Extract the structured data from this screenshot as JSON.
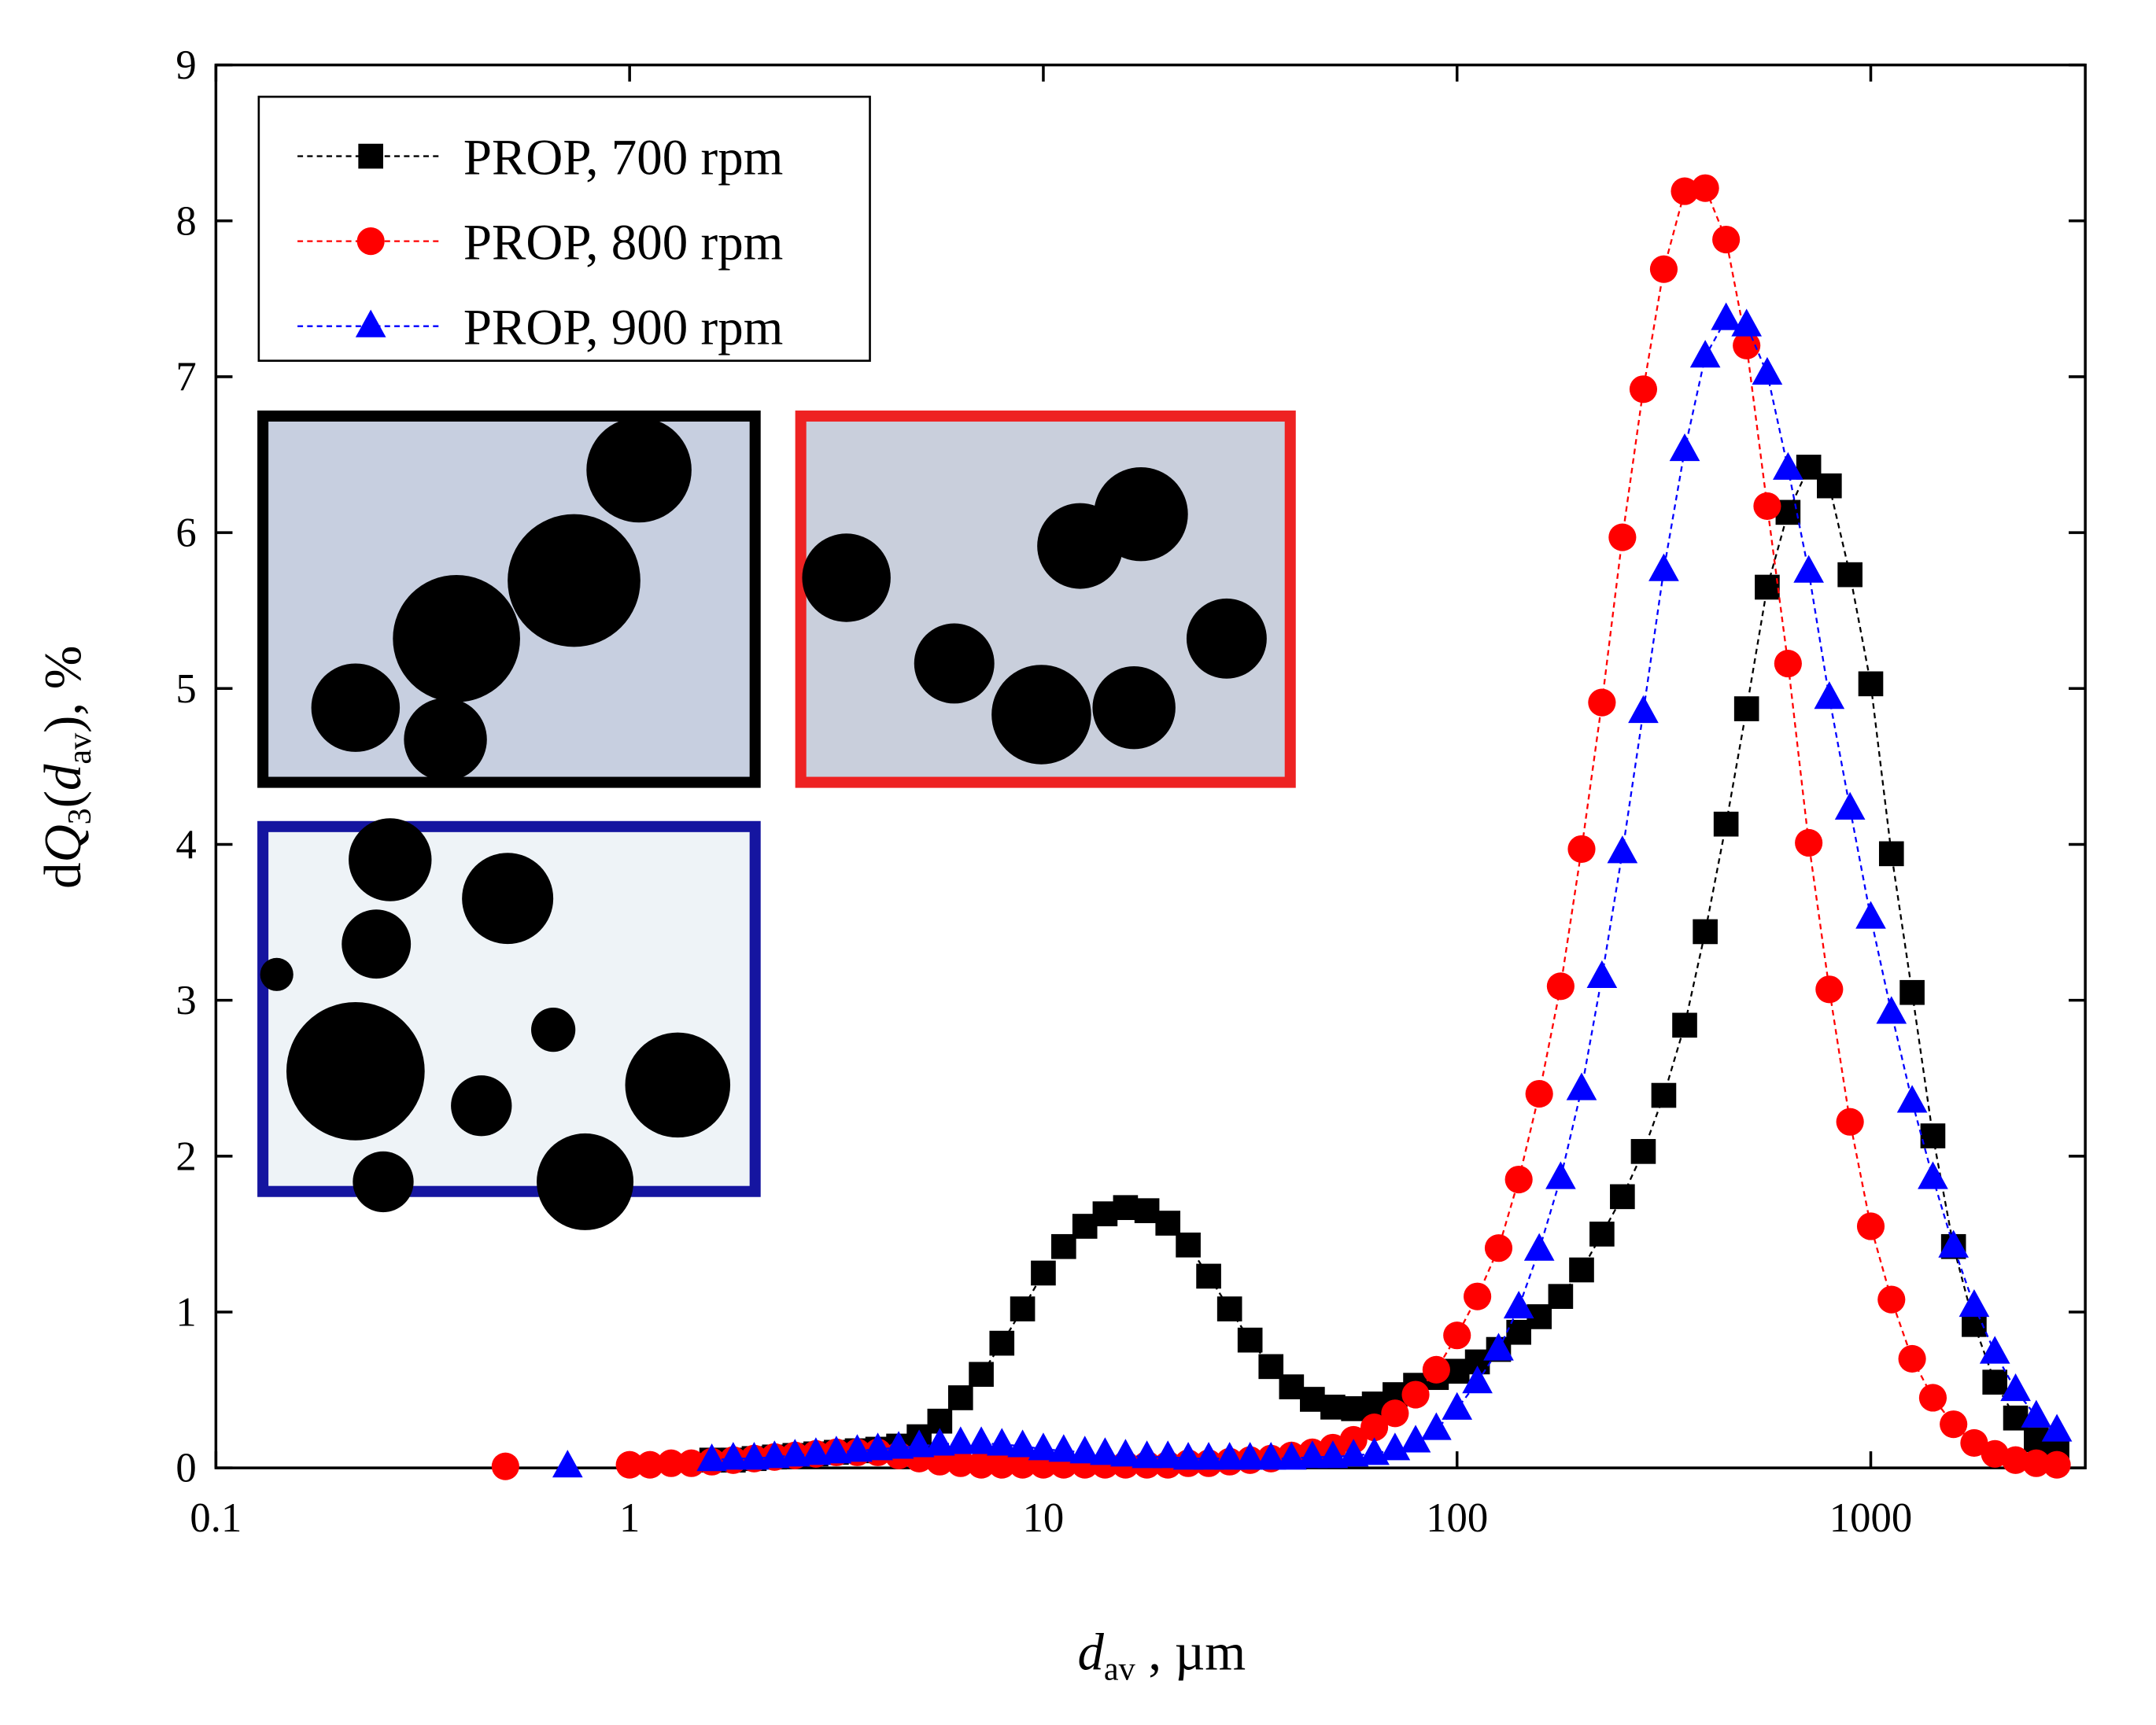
{
  "chart_data": {
    "type": "scatter",
    "x_label": [
      "d",
      "av",
      " , µm"
    ],
    "y_label": [
      "d",
      "Q",
      "3",
      "(",
      "d",
      "av",
      "), %"
    ],
    "x": [
      0.501,
      0.562,
      0.631,
      0.708,
      0.794,
      0.891,
      1,
      1.12,
      1.26,
      1.41,
      1.58,
      1.78,
      2.0,
      2.24,
      2.51,
      2.82,
      3.16,
      3.55,
      3.98,
      4.47,
      5.01,
      5.62,
      6.31,
      7.08,
      7.94,
      8.91,
      10,
      11.2,
      12.6,
      14.1,
      15.8,
      17.8,
      20,
      22.4,
      25.1,
      28.2,
      31.6,
      35.5,
      39.8,
      44.7,
      50.1,
      56.2,
      63.1,
      70.8,
      79.4,
      89.1,
      100,
      112,
      126,
      141,
      158,
      178,
      200,
      224,
      251,
      282,
      316,
      355,
      398,
      447,
      501,
      562,
      631,
      708,
      794,
      891,
      1000,
      1122,
      1259,
      1413,
      1585,
      1778,
      1995,
      2239,
      2512,
      2818
    ],
    "series": [
      {
        "name": "PROP, 700 rpm",
        "color": "#000000",
        "marker": "square",
        "values": [
          null,
          null,
          null,
          null,
          null,
          null,
          null,
          null,
          null,
          null,
          0.05,
          0.05,
          0.06,
          0.07,
          0.08,
          0.09,
          0.1,
          0.11,
          0.12,
          0.14,
          0.2,
          0.3,
          0.45,
          0.6,
          0.8,
          1.02,
          1.25,
          1.42,
          1.55,
          1.63,
          1.67,
          1.65,
          1.57,
          1.43,
          1.23,
          1.02,
          0.82,
          0.65,
          0.52,
          0.44,
          0.39,
          0.38,
          0.41,
          0.47,
          0.53,
          0.58,
          0.62,
          0.68,
          0.76,
          0.87,
          0.97,
          1.1,
          1.27,
          1.5,
          1.74,
          2.03,
          2.39,
          2.84,
          3.44,
          4.13,
          4.87,
          5.65,
          6.13,
          6.42,
          6.3,
          5.73,
          5.03,
          3.94,
          3.05,
          2.13,
          1.42,
          0.92,
          0.55,
          0.32,
          0.18,
          0.1
        ]
      },
      {
        "name": "PROP, 800 rpm",
        "color": "#ff0000",
        "marker": "circle",
        "values": [
          0.01,
          null,
          null,
          null,
          null,
          null,
          0.02,
          0.02,
          0.03,
          0.03,
          0.04,
          0.05,
          0.06,
          0.07,
          0.08,
          0.09,
          0.1,
          0.1,
          0.1,
          0.08,
          0.06,
          0.04,
          0.03,
          0.02,
          0.02,
          0.02,
          0.02,
          0.02,
          0.02,
          0.02,
          0.02,
          0.02,
          0.02,
          0.03,
          0.03,
          0.04,
          0.05,
          0.06,
          0.08,
          0.1,
          0.13,
          0.18,
          0.26,
          0.35,
          0.47,
          0.63,
          0.85,
          1.1,
          1.41,
          1.85,
          2.4,
          3.09,
          3.97,
          4.91,
          5.97,
          6.92,
          7.69,
          8.19,
          8.21,
          7.88,
          7.2,
          6.17,
          5.16,
          4.01,
          3.07,
          2.22,
          1.55,
          1.08,
          0.7,
          0.45,
          0.28,
          0.16,
          0.09,
          0.05,
          0.03,
          0.02
        ]
      },
      {
        "name": "PROP, 900 rpm",
        "color": "#0000ff",
        "marker": "triangle",
        "values": [
          null,
          null,
          null,
          0.01,
          null,
          null,
          null,
          null,
          null,
          null,
          0.05,
          0.06,
          0.06,
          0.07,
          0.08,
          0.09,
          0.1,
          0.11,
          0.12,
          0.13,
          0.14,
          0.15,
          0.16,
          0.16,
          0.15,
          0.14,
          0.12,
          0.11,
          0.1,
          0.09,
          0.08,
          0.07,
          0.07,
          0.06,
          0.06,
          0.06,
          0.06,
          0.06,
          0.06,
          0.07,
          0.07,
          0.08,
          0.09,
          0.12,
          0.17,
          0.25,
          0.38,
          0.55,
          0.76,
          1.03,
          1.4,
          1.86,
          2.43,
          3.15,
          3.95,
          4.85,
          5.76,
          6.53,
          7.13,
          7.37,
          7.33,
          7.02,
          6.41,
          5.75,
          4.94,
          4.23,
          3.53,
          2.92,
          2.35,
          1.86,
          1.42,
          1.04,
          0.74,
          0.5,
          0.33,
          0.24
        ]
      }
    ],
    "xlog": true,
    "xlim": [
      0.1,
      3300
    ],
    "xticks": [
      0.1,
      1,
      10,
      100,
      1000
    ],
    "ylim": [
      0,
      9
    ],
    "yticks": [
      0,
      1,
      2,
      3,
      4,
      5,
      6,
      7,
      8,
      9
    ],
    "legend": "top-left"
  }
}
